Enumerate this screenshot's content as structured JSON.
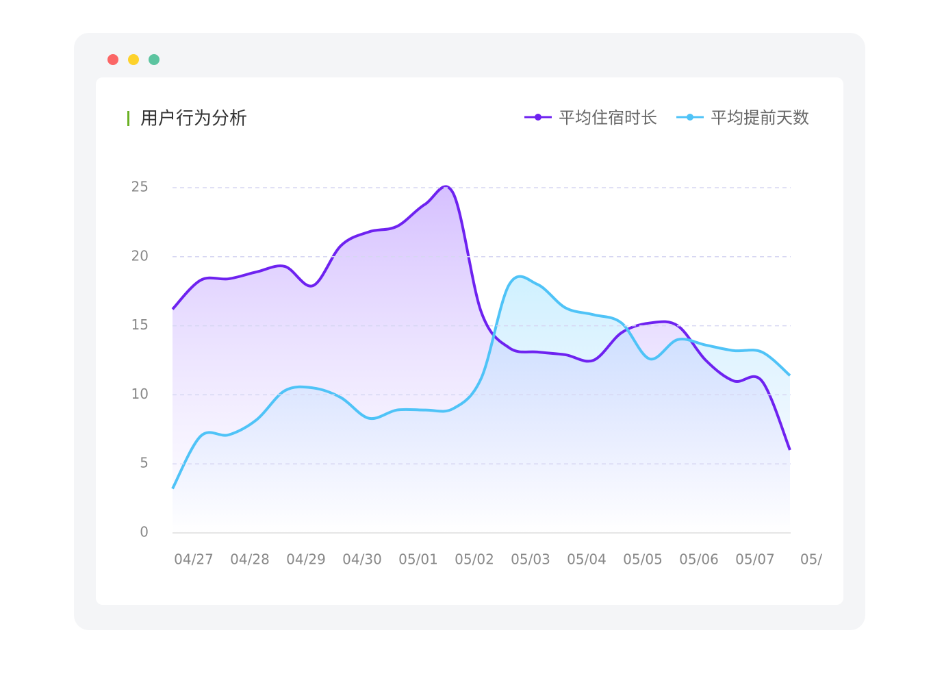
{
  "chart_data": {
    "type": "line",
    "title": "用户行为分析",
    "categories": [
      null,
      "04/27",
      null,
      "04/28",
      null,
      "04/29",
      null,
      "04/30",
      null,
      "05/01",
      null,
      "05/02",
      null,
      "05/03",
      null,
      "05/04",
      null,
      "05/05",
      null,
      "05/06",
      null,
      "05/07",
      null,
      "05/"
    ],
    "series": [
      {
        "name": "平均住宿时长",
        "color": "#6e22f0",
        "values": [
          16.2,
          18.3,
          18.4,
          18.9,
          19.3,
          17.9,
          20.8,
          21.8,
          22.2,
          23.8,
          24.6,
          16,
          13.4,
          13.1,
          12.9,
          12.5,
          14.5,
          15.2,
          15,
          12.5,
          11,
          11,
          6,
          null
        ]
      },
      {
        "name": "平均提前天数",
        "color": "#4fc3f7",
        "values": [
          3.2,
          7,
          7.1,
          8.2,
          10.3,
          10.5,
          9.8,
          8.3,
          8.9,
          8.9,
          9,
          11.2,
          18,
          18,
          16.3,
          15.8,
          15.2,
          12.6,
          14,
          13.6,
          13.2,
          13.1,
          11.4,
          null
        ]
      }
    ],
    "ylim": [
      0,
      25
    ],
    "yticks": [
      0,
      5,
      10,
      15,
      20,
      25
    ],
    "grid": true,
    "legend": "top-right"
  }
}
